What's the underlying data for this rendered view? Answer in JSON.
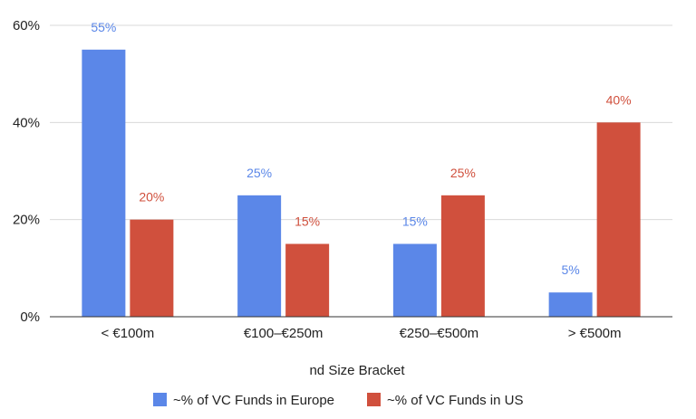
{
  "chart_data": {
    "type": "bar",
    "title": "",
    "xlabel": "nd Size Bracket",
    "ylabel": "",
    "categories": [
      "< €100m",
      "€100–€250m",
      "€250–€500m",
      "> €500m"
    ],
    "series": [
      {
        "name": "~% of VC Funds in Europe",
        "values": [
          55,
          25,
          15,
          5
        ],
        "color": "#5b87e8",
        "labels": [
          "55%",
          "25%",
          "15%",
          "5%"
        ]
      },
      {
        "name": "~% of VC Funds in US",
        "values": [
          20,
          15,
          25,
          40
        ],
        "color": "#d0503d",
        "labels": [
          "20%",
          "15%",
          "25%",
          "40%"
        ]
      }
    ],
    "ylim": [
      0,
      60
    ],
    "yticks": [
      0,
      20,
      40,
      60
    ],
    "ytick_labels": [
      "0%",
      "20%",
      "40%",
      "60%"
    ],
    "grid": true,
    "legend_position": "bottom"
  }
}
